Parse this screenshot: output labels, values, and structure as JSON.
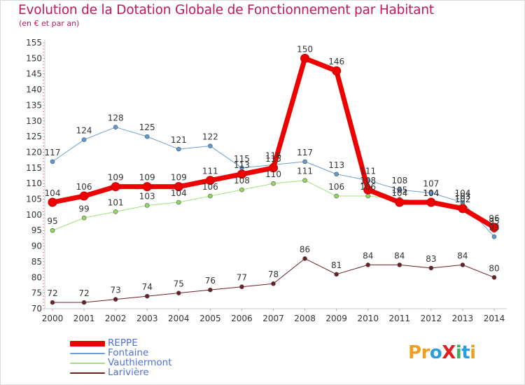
{
  "title": "Evolution de la Dotation Globale de Fonctionnement par Habitant",
  "subtitle": "(en € et par an)",
  "logo": {
    "text": "ProXiti",
    "letters": [
      "P",
      "r",
      "o",
      "X",
      "i",
      "t",
      "i"
    ],
    "colors": [
      "#f0a020",
      "#f0a020",
      "#2a9de0",
      "#e02020",
      "#3ab060",
      "#2a9de0",
      "#f0a020"
    ]
  },
  "chart_data": {
    "type": "line",
    "x": [
      2000,
      2001,
      2002,
      2003,
      2004,
      2005,
      2006,
      2007,
      2008,
      2009,
      2010,
      2011,
      2012,
      2013,
      2014
    ],
    "ylim": [
      70,
      155
    ],
    "yticks": [
      70,
      75,
      80,
      85,
      90,
      95,
      100,
      105,
      110,
      115,
      120,
      125,
      130,
      135,
      140,
      145,
      150,
      155
    ],
    "grid": false,
    "legend_position": "bottom-left",
    "series": [
      {
        "name": "Fontaine",
        "color": "#5b9bd5",
        "line_color": "#6f9fd0",
        "width": 1,
        "marker_r": 3,
        "values": [
          117,
          124,
          128,
          125,
          121,
          122,
          115,
          116,
          117,
          113,
          111,
          108,
          107,
          104,
          93
        ]
      },
      {
        "name": "Vauthiermont",
        "color": "#8ed85a",
        "line_color": "#9ee27a",
        "width": 1,
        "marker_r": 3,
        "values": [
          95,
          99,
          101,
          103,
          104,
          106,
          108,
          110,
          111,
          106,
          106,
          105,
          104,
          103,
          95
        ]
      },
      {
        "name": "Larivière",
        "color": "#6b1f24",
        "line_color": "#6b1f24",
        "width": 1,
        "marker_r": 3,
        "values": [
          72,
          72,
          73,
          74,
          75,
          76,
          77,
          78,
          86,
          81,
          84,
          84,
          83,
          84,
          80
        ]
      },
      {
        "name": "REPPE",
        "color": "#ee0000",
        "line_color": "#ee0000",
        "width": 7,
        "marker_r": 6,
        "values": [
          104,
          106,
          109,
          109,
          109,
          111,
          113,
          115,
          150,
          146,
          108,
          104,
          104,
          102,
          96
        ]
      }
    ],
    "legend_order": [
      "REPPE",
      "Fontaine",
      "Vauthiermont",
      "Larivière"
    ]
  }
}
